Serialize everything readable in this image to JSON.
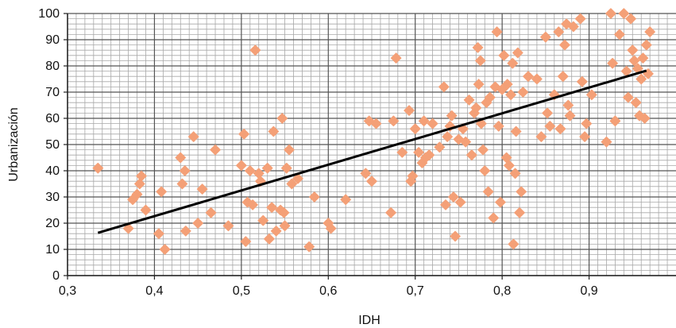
{
  "chart_data": {
    "type": "scatter",
    "xlabel": "IDH",
    "ylabel": "Urbanización",
    "xlim": [
      0.3,
      1.0
    ],
    "ylim": [
      0,
      100
    ],
    "x_ticks": [
      0.3,
      0.4,
      0.5,
      0.6,
      0.7,
      0.8,
      0.9
    ],
    "x_tick_labels": [
      "0,3",
      "0,4",
      "0,5",
      "0,6",
      "0,7",
      "0,8",
      "0,9"
    ],
    "y_ticks": [
      0,
      10,
      20,
      30,
      40,
      50,
      60,
      70,
      80,
      90,
      100
    ],
    "y_tick_labels": [
      "0",
      "10",
      "20",
      "30",
      "40",
      "50",
      "60",
      "70",
      "80",
      "90",
      "100"
    ],
    "grid": "major and minor gridlines on both axes",
    "marker_color": "#F4A077",
    "trendline": {
      "type": "linear",
      "x": [
        0.335,
        0.966
      ],
      "y": [
        16.3,
        78.2
      ],
      "color": "#000000"
    },
    "points": [
      [
        0.335,
        41
      ],
      [
        0.37,
        18
      ],
      [
        0.375,
        29
      ],
      [
        0.38,
        31
      ],
      [
        0.383,
        35
      ],
      [
        0.385,
        38
      ],
      [
        0.39,
        25
      ],
      [
        0.405,
        16
      ],
      [
        0.408,
        32
      ],
      [
        0.412,
        10
      ],
      [
        0.43,
        45
      ],
      [
        0.432,
        35
      ],
      [
        0.435,
        40
      ],
      [
        0.436,
        17
      ],
      [
        0.445,
        53
      ],
      [
        0.45,
        20
      ],
      [
        0.455,
        33
      ],
      [
        0.465,
        24
      ],
      [
        0.47,
        48
      ],
      [
        0.485,
        19
      ],
      [
        0.5,
        42
      ],
      [
        0.503,
        54
      ],
      [
        0.505,
        13
      ],
      [
        0.507,
        28
      ],
      [
        0.51,
        40
      ],
      [
        0.513,
        27
      ],
      [
        0.516,
        86
      ],
      [
        0.52,
        39
      ],
      [
        0.522,
        36
      ],
      [
        0.525,
        21
      ],
      [
        0.53,
        41
      ],
      [
        0.532,
        14
      ],
      [
        0.535,
        26
      ],
      [
        0.537,
        55
      ],
      [
        0.54,
        17
      ],
      [
        0.545,
        25
      ],
      [
        0.547,
        60
      ],
      [
        0.549,
        24
      ],
      [
        0.55,
        19
      ],
      [
        0.552,
        41
      ],
      [
        0.555,
        48
      ],
      [
        0.558,
        35
      ],
      [
        0.565,
        37
      ],
      [
        0.578,
        11
      ],
      [
        0.584,
        30
      ],
      [
        0.6,
        20
      ],
      [
        0.603,
        18
      ],
      [
        0.62,
        29
      ],
      [
        0.643,
        39
      ],
      [
        0.647,
        59
      ],
      [
        0.65,
        36
      ],
      [
        0.655,
        58
      ],
      [
        0.672,
        24
      ],
      [
        0.675,
        59
      ],
      [
        0.678,
        83
      ],
      [
        0.685,
        47
      ],
      [
        0.693,
        63
      ],
      [
        0.695,
        36
      ],
      [
        0.697,
        38
      ],
      [
        0.7,
        56
      ],
      [
        0.704,
        47
      ],
      [
        0.708,
        43
      ],
      [
        0.71,
        59
      ],
      [
        0.712,
        45
      ],
      [
        0.716,
        46
      ],
      [
        0.72,
        58
      ],
      [
        0.728,
        49
      ],
      [
        0.733,
        72
      ],
      [
        0.735,
        27
      ],
      [
        0.737,
        53
      ],
      [
        0.74,
        57
      ],
      [
        0.742,
        61
      ],
      [
        0.744,
        30
      ],
      [
        0.746,
        15
      ],
      [
        0.75,
        52
      ],
      [
        0.752,
        28
      ],
      [
        0.755,
        56
      ],
      [
        0.758,
        51
      ],
      [
        0.762,
        67
      ],
      [
        0.765,
        46
      ],
      [
        0.768,
        62
      ],
      [
        0.77,
        64
      ],
      [
        0.772,
        87
      ],
      [
        0.773,
        73
      ],
      [
        0.775,
        82
      ],
      [
        0.776,
        58
      ],
      [
        0.778,
        48
      ],
      [
        0.78,
        40
      ],
      [
        0.782,
        66
      ],
      [
        0.784,
        32
      ],
      [
        0.786,
        68
      ],
      [
        0.79,
        22
      ],
      [
        0.792,
        72
      ],
      [
        0.794,
        93
      ],
      [
        0.796,
        57
      ],
      [
        0.798,
        28
      ],
      [
        0.8,
        71
      ],
      [
        0.802,
        84
      ],
      [
        0.805,
        45
      ],
      [
        0.806,
        73
      ],
      [
        0.808,
        42
      ],
      [
        0.81,
        69
      ],
      [
        0.812,
        81
      ],
      [
        0.813,
        12
      ],
      [
        0.815,
        39
      ],
      [
        0.816,
        55
      ],
      [
        0.818,
        85
      ],
      [
        0.82,
        24
      ],
      [
        0.822,
        32
      ],
      [
        0.824,
        70
      ],
      [
        0.83,
        76
      ],
      [
        0.84,
        75
      ],
      [
        0.845,
        53
      ],
      [
        0.85,
        91
      ],
      [
        0.852,
        62
      ],
      [
        0.855,
        57
      ],
      [
        0.86,
        69
      ],
      [
        0.865,
        93
      ],
      [
        0.867,
        56
      ],
      [
        0.87,
        76
      ],
      [
        0.872,
        88
      ],
      [
        0.874,
        96
      ],
      [
        0.876,
        65
      ],
      [
        0.878,
        61
      ],
      [
        0.882,
        95
      ],
      [
        0.89,
        98
      ],
      [
        0.892,
        74
      ],
      [
        0.895,
        53
      ],
      [
        0.897,
        58
      ],
      [
        0.903,
        69
      ],
      [
        0.92,
        51
      ],
      [
        0.925,
        100
      ],
      [
        0.927,
        81
      ],
      [
        0.93,
        59
      ],
      [
        0.935,
        92
      ],
      [
        0.94,
        100
      ],
      [
        0.943,
        78
      ],
      [
        0.945,
        68
      ],
      [
        0.948,
        98
      ],
      [
        0.95,
        86
      ],
      [
        0.952,
        82
      ],
      [
        0.954,
        66
      ],
      [
        0.956,
        79
      ],
      [
        0.958,
        61
      ],
      [
        0.96,
        75
      ],
      [
        0.962,
        83
      ],
      [
        0.964,
        60
      ],
      [
        0.966,
        88
      ],
      [
        0.97,
        93
      ],
      [
        0.968,
        77
      ]
    ]
  }
}
